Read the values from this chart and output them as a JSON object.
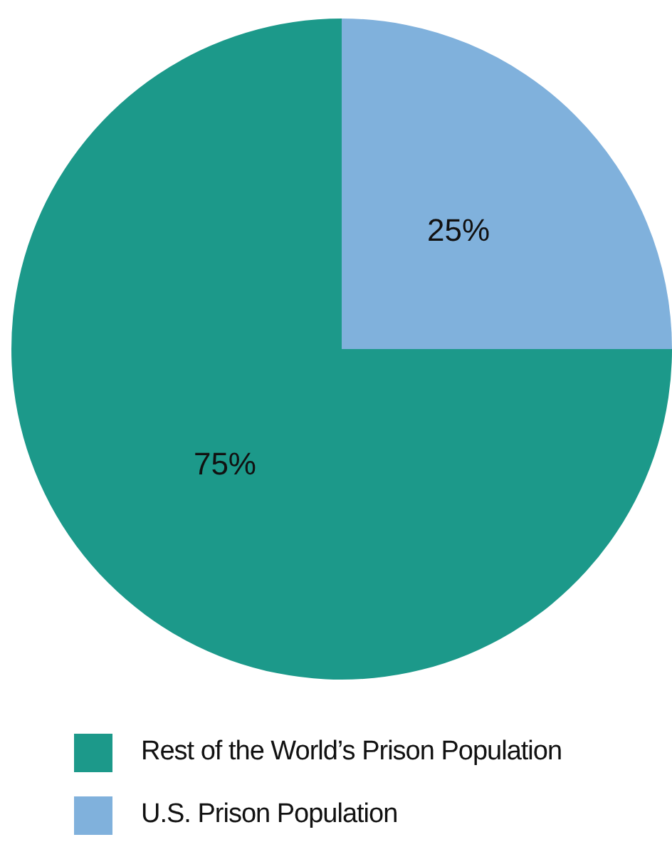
{
  "chart_data": {
    "type": "pie",
    "categories": [
      "Rest of the World’s Prison Population",
      "U.S. Prison Population"
    ],
    "values": [
      75,
      25
    ],
    "colors": [
      "#1c998a",
      "#80b1dc"
    ],
    "value_labels": [
      "75%",
      "25%"
    ],
    "legend": "bottom"
  }
}
